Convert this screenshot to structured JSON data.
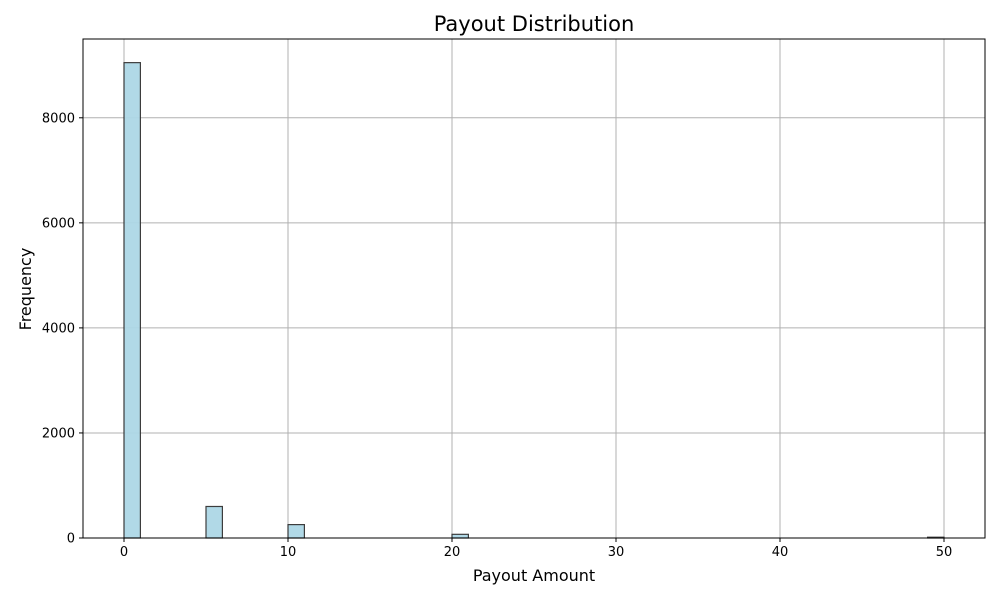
{
  "chart_data": {
    "type": "bar",
    "title": "Payout Distribution",
    "xlabel": "Payout Amount",
    "ylabel": "Frequency",
    "xlim": [
      -2.5,
      52.5
    ],
    "ylim": [
      0,
      9500
    ],
    "x_ticks": [
      0,
      10,
      20,
      30,
      40,
      50
    ],
    "y_ticks": [
      0,
      2000,
      4000,
      6000,
      8000
    ],
    "bin_width": 1,
    "grid": true,
    "bars": [
      {
        "bin_start": 0,
        "value": 9050
      },
      {
        "bin_start": 5,
        "value": 600
      },
      {
        "bin_start": 10,
        "value": 255
      },
      {
        "bin_start": 20,
        "value": 70
      },
      {
        "bin_start": 49,
        "value": 15
      }
    ],
    "colors": {
      "bar_fill": "#ADD8E6",
      "bar_edge": "#333333",
      "grid": "#b0b0b0"
    }
  }
}
